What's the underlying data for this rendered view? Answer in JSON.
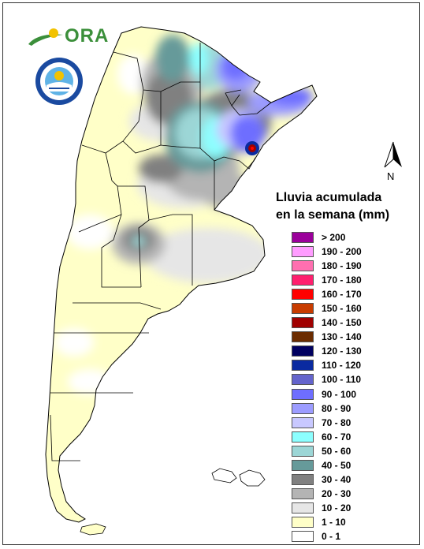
{
  "legend": {
    "title_line1": "Lluvia acumulada",
    "title_line2": "en la semana (mm)",
    "items": [
      {
        "label": "> 200",
        "color": "#9b009b"
      },
      {
        "label": "190 - 200",
        "color": "#ff9cff"
      },
      {
        "label": "180 - 190",
        "color": "#ff6fb0"
      },
      {
        "label": "170 - 180",
        "color": "#ff1f6e"
      },
      {
        "label": "160 - 170",
        "color": "#ff0000"
      },
      {
        "label": "150 - 160",
        "color": "#c83c00"
      },
      {
        "label": "140 - 150",
        "color": "#a00000"
      },
      {
        "label": "130 - 140",
        "color": "#6b2c00"
      },
      {
        "label": "120 - 130",
        "color": "#000060"
      },
      {
        "label": "110 - 120",
        "color": "#0a2aa0"
      },
      {
        "label": "100 - 110",
        "color": "#6464cc"
      },
      {
        "label": "90 - 100",
        "color": "#6e6eff"
      },
      {
        "label": "80 - 90",
        "color": "#9c9cff"
      },
      {
        "label": "70 - 80",
        "color": "#c8c8ff"
      },
      {
        "label": "60 - 70",
        "color": "#8cffff"
      },
      {
        "label": "50 - 60",
        "color": "#9cd6d6"
      },
      {
        "label": "40 - 50",
        "color": "#669a9a"
      },
      {
        "label": "30 - 40",
        "color": "#808080"
      },
      {
        "label": "20 - 30",
        "color": "#b4b4b4"
      },
      {
        "label": "10 - 20",
        "color": "#e6e6e6"
      },
      {
        "label": "1 - 10",
        "color": "#ffffc8"
      },
      {
        "label": "0 - 1",
        "color": "#ffffff"
      }
    ]
  },
  "logos": {
    "ora": "ORA",
    "smn": "Servicio Meteorológico Nacional Argentina"
  },
  "north_arrow": {
    "label": "N"
  }
}
